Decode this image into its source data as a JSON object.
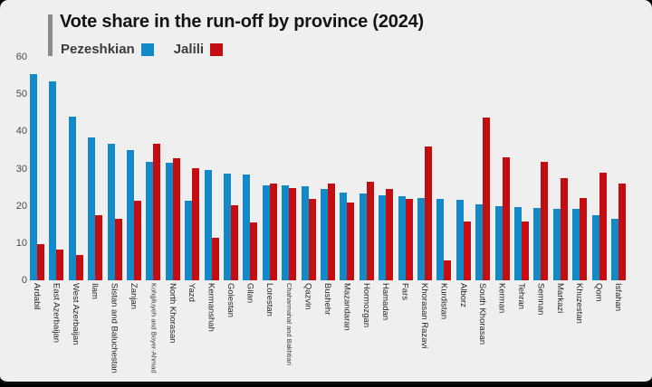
{
  "header": {
    "title": "Vote share in the run-off by province (2024)"
  },
  "colors": {
    "background": "#efefef",
    "accent_bar": "#8b8b8b",
    "pezeshkian_blue": "#1489c8",
    "jalili_red": "#c30d10",
    "title_text": "#141414",
    "tick_text": "#4a4a4a"
  },
  "chart_data": {
    "type": "bar",
    "title": "Vote share in the run-off by province (2024)",
    "xlabel": "",
    "ylabel": "",
    "ylim": [
      0,
      60
    ],
    "yticks": [
      0,
      10,
      20,
      30,
      40,
      50,
      60
    ],
    "grid": false,
    "legend_position": "top-left",
    "categories": [
      "Ardabil",
      "East Azerbaijan",
      "West Azerbaijan",
      "Ilam",
      "Sistan and Baluchestan",
      "Zanjan",
      "Kohgiluyeh and Boyer-Ahmad",
      "North Khorasan",
      "Yazd",
      "Kermanshah",
      "Golestan",
      "Gilan",
      "Lorestan",
      "Chaharmahal and Bakhtiari",
      "Qazvin",
      "Bushehr",
      "Mazandaran",
      "Hormozgan",
      "Hamadan",
      "Fars",
      "Khorasan Razavi",
      "Kurdistan",
      "Alborz",
      "South Khorasan",
      "Kerman",
      "Tehran",
      "Semnan",
      "Markazi",
      "Khuzestan",
      "Qom",
      "Isfahan"
    ],
    "small_label_categories": [
      "Kohgiluyeh and Boyer-Ahmad",
      "Chaharmahal and Bakhtiari"
    ],
    "series": [
      {
        "name": "Pezeshkian",
        "color": "#1489c8",
        "values": [
          55.4,
          53.4,
          44.0,
          38.4,
          36.7,
          35.0,
          31.9,
          31.5,
          21.3,
          29.6,
          28.7,
          28.5,
          25.5,
          25.4,
          25.2,
          24.6,
          23.5,
          23.2,
          22.8,
          22.6,
          22.1,
          21.8,
          21.5,
          20.4,
          19.9,
          19.7,
          19.5,
          19.3,
          19.1,
          17.4,
          16.4
        ]
      },
      {
        "name": "Jalili",
        "color": "#c30d10",
        "values": [
          9.8,
          8.2,
          6.7,
          17.4,
          16.4,
          21.4,
          36.8,
          32.9,
          30.2,
          11.4,
          20.1,
          15.6,
          26.0,
          24.8,
          21.8,
          25.9,
          21.0,
          26.4,
          24.6,
          21.8,
          35.9,
          5.4,
          15.8,
          43.7,
          33.0,
          15.8,
          31.8,
          27.5,
          22.0,
          29.0,
          26.1
        ]
      }
    ]
  }
}
